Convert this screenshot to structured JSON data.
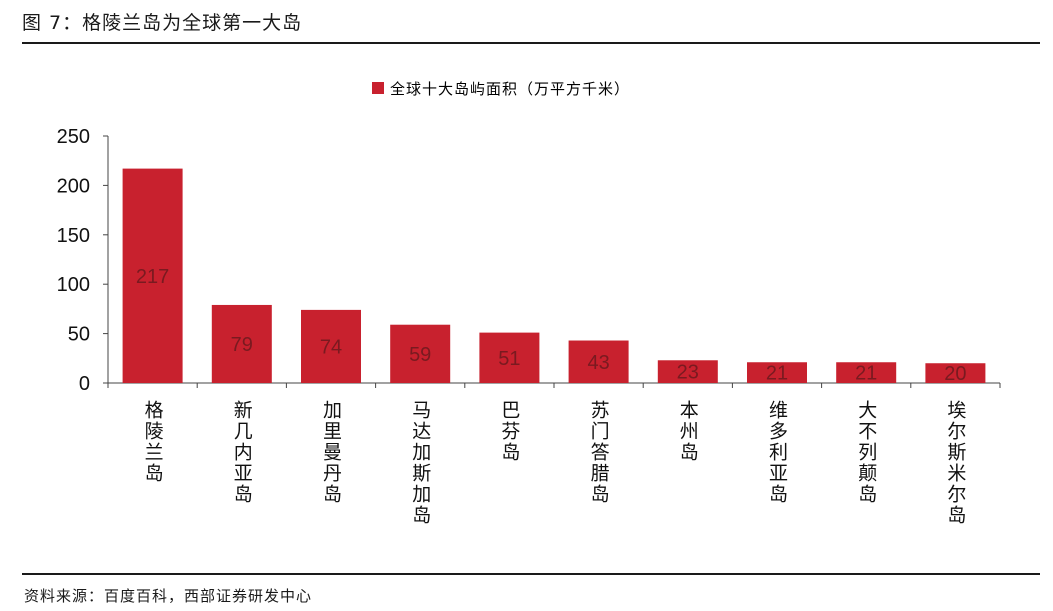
{
  "figure": {
    "title": "图 7：格陵兰岛为全球第一大岛",
    "source": "资料来源：百度百科，西部证券研发中心"
  },
  "colors": {
    "bar": "#c8212e",
    "label": "#7a1a20",
    "axis": "#444444"
  },
  "chart_data": {
    "type": "bar",
    "categories": [
      "格陵兰岛",
      "新几内亚岛",
      "加里曼丹岛",
      "马达加斯加岛",
      "巴芬岛",
      "苏门答腊岛",
      "本州岛",
      "维多利亚岛",
      "大不列颠岛",
      "埃尔斯米尔岛"
    ],
    "series": [
      {
        "name": "全球十大岛屿面积（万平方千米）",
        "values": [
          217,
          79,
          74,
          59,
          51,
          43,
          23,
          21,
          21,
          20
        ]
      }
    ],
    "data_labels": [
      "217",
      "79",
      "74",
      "59",
      "51",
      "43",
      "23",
      "21",
      "21",
      "20"
    ],
    "ylim": [
      0,
      250
    ],
    "yticks": [
      "0",
      "50",
      "100",
      "150",
      "200",
      "250"
    ],
    "legend_position": "top-center",
    "grid": false
  }
}
